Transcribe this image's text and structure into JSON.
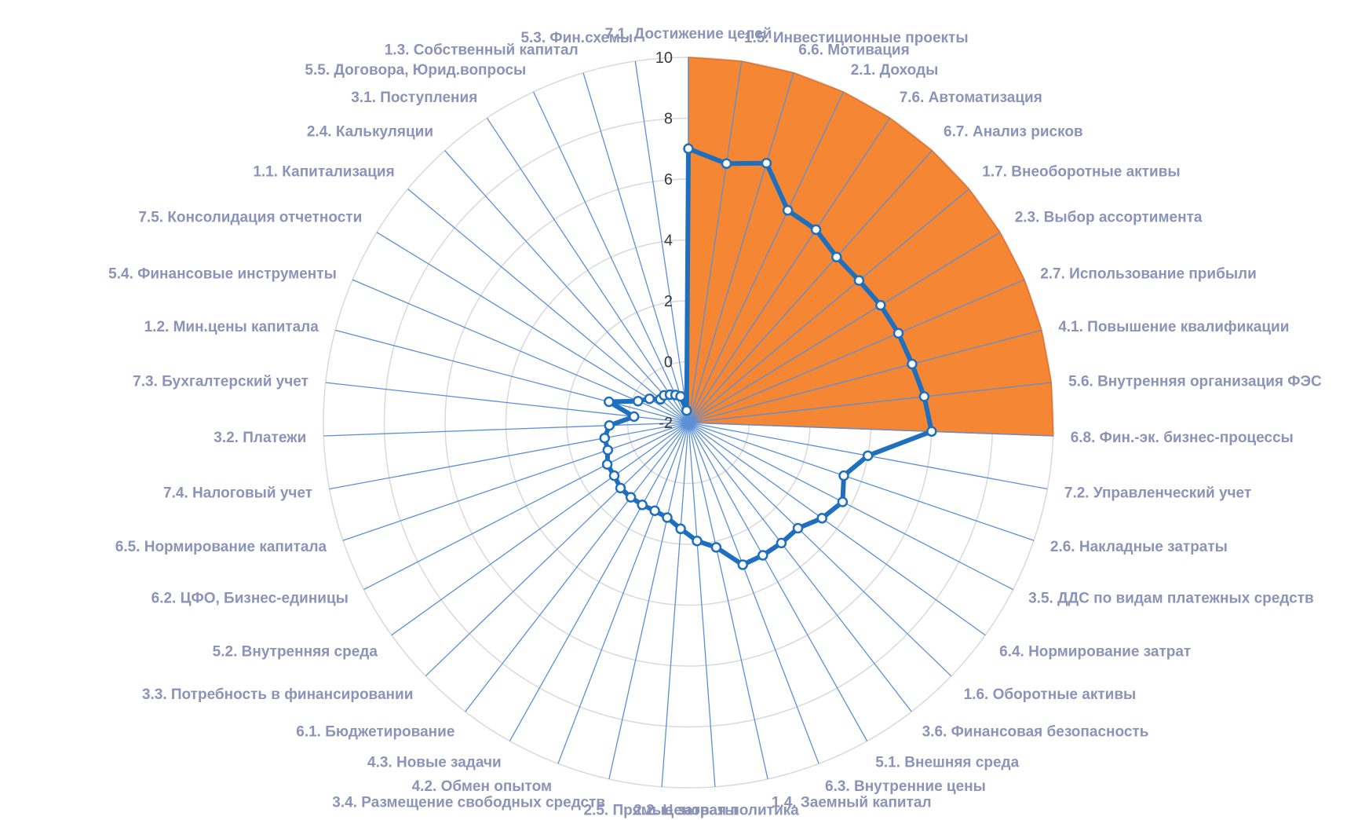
{
  "chart_data": {
    "type": "radar",
    "range": [
      -2,
      10
    ],
    "ticks": [
      -2,
      0,
      2,
      4,
      6,
      8,
      10
    ],
    "grid": true,
    "categories": [
      "7.1. Достижение целей",
      "1.5. Инвестиционные проекты",
      "6.6. Мотивация",
      "2.1. Доходы",
      "7.6. Автоматизация",
      "6.7. Анализ рисков",
      "1.7. Внеоборотные активы",
      "2.3. Выбор ассортимента",
      "2.7. Использование прибыли",
      "4.1. Повышение квалификации",
      "5.6. Внутренняя организация ФЭС",
      "6.8. Фин.-эк. бизнес-процессы",
      "7.2. Управленческий учет",
      "2.6. Накладные затраты",
      "3.5. ДДС по видам платежных средств",
      "6.4. Нормирование затрат",
      "1.6. Оборотные активы",
      "3.6. Финансовая безопасность",
      "5.1. Внешняя среда",
      "6.3. Внутренние цены",
      "1.4. Заемный капитал",
      "2.2. Ценовая политика",
      "2.5. Прямые затраты",
      "3.4. Размещение свободных средств",
      "4.2. Обмен опытом",
      "4.3. Новые задачи",
      "6.1. Бюджетирование",
      "3.3. Потребность в финансировании",
      "5.2. Внутренняя среда",
      "6.2. ЦФО, Бизнес-единицы",
      "6.5. Нормирование капитала",
      "7.4. Налоговый учет",
      "3.2. Платежи",
      "7.3. Бухгалтерский учет",
      "1.2. Мин.цены капитала",
      "5.4. Финансовые инструменты",
      "7.5. Консолидация отчетности",
      "1.1. Капитализация",
      "2.4. Калькуляции",
      "3.1. Поступления",
      "5.5. Договора, Юрид.вопросы",
      "1.3. Собственный капитал",
      "5.3. Фин.схемы"
    ],
    "series": [
      {
        "type": "area",
        "color": "#f58634",
        "values": [
          10,
          10,
          10,
          10,
          10,
          10,
          10,
          10,
          10,
          10,
          10,
          10,
          -2,
          -2,
          -2,
          -2,
          -2,
          -2,
          -2,
          -2,
          -2,
          -2,
          -2,
          -2,
          -2,
          -2,
          -2,
          -2,
          -2,
          -2,
          -2,
          -2,
          -2,
          -2,
          -2,
          -2,
          -2,
          -2,
          -2,
          -2,
          -2,
          -2,
          -2
        ]
      },
      {
        "type": "line",
        "color": "#1f6fbf",
        "values": [
          7,
          6.6,
          6.9,
          5.7,
          5.6,
          5.3,
          5.3,
          5.4,
          5.5,
          5.6,
          5.8,
          6,
          4,
          3.4,
          3.7,
          3.4,
          3,
          3,
          3,
          3,
          2.2,
          1.9,
          1.5,
          1.2,
          1.1,
          1.1,
          1.1,
          1.1,
          1,
          1,
          0.8,
          0.8,
          0.6,
          -0.2,
          0.7,
          -0.2,
          -0.5,
          -0.8,
          -0.8,
          -0.9,
          -1,
          -1.1,
          -1.6
        ]
      }
    ]
  }
}
